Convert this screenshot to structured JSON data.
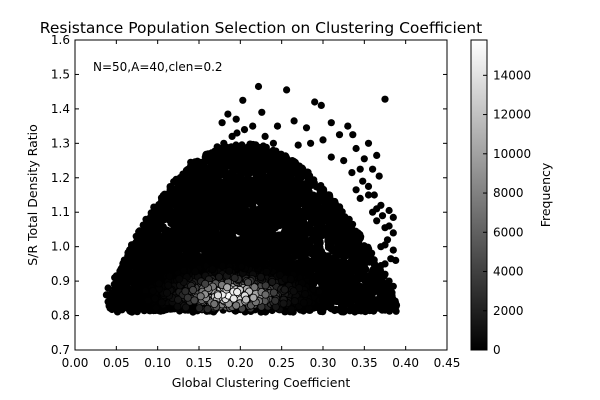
{
  "chart_data": {
    "type": "scatter",
    "title": "Resistance Population Selection on Clustering Coefficient",
    "xlabel": "Global Clustering Coefficient",
    "ylabel": "S/R Total Density Ratio",
    "annotation": "N=50,A=40,clen=0.2",
    "xlim": [
      0.0,
      0.45
    ],
    "ylim": [
      0.7,
      1.6
    ],
    "xticks": [
      "0.00",
      "0.05",
      "0.10",
      "0.15",
      "0.20",
      "0.25",
      "0.30",
      "0.35",
      "0.40",
      "0.45"
    ],
    "yticks": [
      "0.7",
      "0.8",
      "0.9",
      "1.0",
      "1.1",
      "1.2",
      "1.3",
      "1.4",
      "1.5",
      "1.6"
    ],
    "grid": false,
    "colormap": "gray",
    "colorbar": {
      "label": "Frequency",
      "range": [
        0,
        15800
      ],
      "ticks": [
        "0",
        "2000",
        "4000",
        "6000",
        "8000",
        "10000",
        "12000",
        "14000"
      ]
    },
    "colors": {
      "point_low": "#000000",
      "point_high": "#ffffff",
      "axis": "#000000",
      "background": "#ffffff"
    },
    "density": {
      "center_x": 0.19,
      "center_y": 0.86,
      "peak_frequency": 15800
    },
    "points": [
      [
        0.222,
        1.465
      ],
      [
        0.256,
        1.455
      ],
      [
        0.375,
        1.428
      ],
      [
        0.203,
        1.425
      ],
      [
        0.29,
        1.42
      ],
      [
        0.298,
        1.41
      ],
      [
        0.226,
        1.39
      ],
      [
        0.185,
        1.385
      ],
      [
        0.195,
        1.37
      ],
      [
        0.265,
        1.365
      ],
      [
        0.31,
        1.36
      ],
      [
        0.178,
        1.36
      ],
      [
        0.33,
        1.35
      ],
      [
        0.215,
        1.35
      ],
      [
        0.245,
        1.35
      ],
      [
        0.28,
        1.345
      ],
      [
        0.196,
        1.33
      ],
      [
        0.205,
        1.34
      ],
      [
        0.32,
        1.325
      ],
      [
        0.336,
        1.325
      ],
      [
        0.19,
        1.32
      ],
      [
        0.23,
        1.32
      ],
      [
        0.355,
        1.3
      ],
      [
        0.3,
        1.31
      ],
      [
        0.18,
        1.3
      ],
      [
        0.24,
        1.3
      ],
      [
        0.27,
        1.295
      ],
      [
        0.285,
        1.3
      ],
      [
        0.172,
        1.29
      ],
      [
        0.34,
        1.285
      ],
      [
        0.365,
        1.265
      ],
      [
        0.35,
        1.255
      ],
      [
        0.31,
        1.26
      ],
      [
        0.14,
        1.245
      ],
      [
        0.165,
        1.25
      ],
      [
        0.325,
        1.25
      ],
      [
        0.36,
        1.225
      ],
      [
        0.368,
        1.205
      ],
      [
        0.345,
        1.225
      ],
      [
        0.335,
        1.215
      ],
      [
        0.125,
        1.175
      ],
      [
        0.128,
        1.18
      ],
      [
        0.145,
        1.2
      ],
      [
        0.155,
        1.215
      ],
      [
        0.16,
        1.225
      ],
      [
        0.355,
        1.175
      ],
      [
        0.348,
        1.19
      ],
      [
        0.34,
        1.165
      ],
      [
        0.355,
        1.15
      ],
      [
        0.345,
        1.14
      ],
      [
        0.362,
        1.15
      ],
      [
        0.11,
        1.135
      ],
      [
        0.12,
        1.15
      ],
      [
        0.135,
        1.17
      ],
      [
        0.37,
        1.12
      ],
      [
        0.38,
        1.105
      ],
      [
        0.385,
        1.085
      ],
      [
        0.36,
        1.1
      ],
      [
        0.365,
        1.11
      ],
      [
        0.372,
        1.09
      ],
      [
        0.105,
        1.11
      ],
      [
        0.095,
        1.08
      ],
      [
        0.09,
        1.05
      ],
      [
        0.11,
        1.1
      ],
      [
        0.38,
        1.06
      ],
      [
        0.385,
        1.04
      ],
      [
        0.365,
        1.075
      ],
      [
        0.375,
        1.055
      ],
      [
        0.085,
        1.035
      ],
      [
        0.08,
        1.01
      ],
      [
        0.075,
        0.99
      ],
      [
        0.07,
        0.985
      ],
      [
        0.378,
        1.02
      ],
      [
        0.385,
        0.99
      ],
      [
        0.375,
        1.005
      ],
      [
        0.37,
        1.0
      ],
      [
        0.065,
        0.96
      ],
      [
        0.058,
        0.945
      ],
      [
        0.06,
        0.94
      ],
      [
        0.072,
        0.97
      ],
      [
        0.382,
        0.965
      ],
      [
        0.388,
        0.96
      ],
      [
        0.375,
        0.95
      ],
      [
        0.37,
        0.945
      ],
      [
        0.05,
        0.915
      ],
      [
        0.048,
        0.91
      ],
      [
        0.055,
        0.925
      ],
      [
        0.06,
        0.9
      ],
      [
        0.375,
        0.92
      ],
      [
        0.38,
        0.9
      ],
      [
        0.372,
        0.91
      ],
      [
        0.37,
        0.89
      ],
      [
        0.04,
        0.88
      ],
      [
        0.038,
        0.86
      ],
      [
        0.04,
        0.84
      ],
      [
        0.045,
        0.85
      ],
      [
        0.385,
        0.885
      ],
      [
        0.372,
        0.872
      ],
      [
        0.375,
        0.86
      ],
      [
        0.36,
        0.85
      ],
      [
        0.05,
        0.83
      ],
      [
        0.055,
        0.82
      ],
      [
        0.365,
        0.835
      ],
      [
        0.355,
        0.825
      ],
      [
        0.345,
        0.815
      ],
      [
        0.07,
        0.815
      ]
    ]
  }
}
